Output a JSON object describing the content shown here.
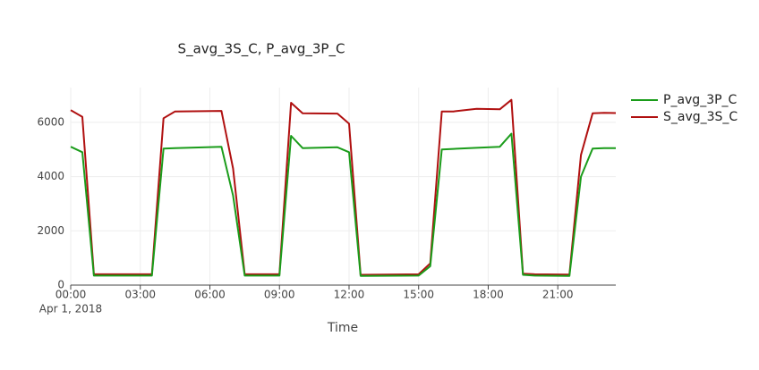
{
  "chart_data": {
    "type": "line",
    "title": "S_avg_3S_C, P_avg_3P_C",
    "x_label": "Time",
    "x": [
      "2018-04-01T00:00",
      "2018-04-01T00:30",
      "2018-04-01T01:00",
      "2018-04-01T03:30",
      "2018-04-01T04:00",
      "2018-04-01T04:30",
      "2018-04-01T06:30",
      "2018-04-01T07:00",
      "2018-04-01T07:30",
      "2018-04-01T09:00",
      "2018-04-01T09:30",
      "2018-04-01T10:00",
      "2018-04-01T11:30",
      "2018-04-01T12:00",
      "2018-04-01T12:30",
      "2018-04-01T15:00",
      "2018-04-01T15:30",
      "2018-04-01T16:00",
      "2018-04-01T16:30",
      "2018-04-01T17:30",
      "2018-04-01T18:30",
      "2018-04-01T19:00",
      "2018-04-01T19:30",
      "2018-04-01T20:00",
      "2018-04-01T21:30",
      "2018-04-01T22:00",
      "2018-04-01T22:30",
      "2018-04-01T23:00",
      "2018-04-01T23:30"
    ],
    "series": [
      {
        "name": "P_avg_3P_C",
        "color": "#1a9c1a",
        "values": [
          5100,
          4900,
          350,
          350,
          5030,
          5050,
          5100,
          3300,
          350,
          350,
          5500,
          5050,
          5080,
          4900,
          340,
          350,
          700,
          5000,
          5020,
          5060,
          5100,
          5580,
          380,
          350,
          340,
          4000,
          5030,
          5050,
          5050
        ]
      },
      {
        "name": "S_avg_3S_C",
        "color": "#b01010",
        "values": [
          6450,
          6200,
          400,
          400,
          6150,
          6400,
          6420,
          4300,
          400,
          400,
          6720,
          6330,
          6320,
          5950,
          380,
          400,
          800,
          6400,
          6400,
          6500,
          6480,
          6830,
          420,
          400,
          390,
          4800,
          6330,
          6350,
          6340
        ]
      }
    ],
    "xlim": [
      "2018-04-01T00:00",
      "2018-04-01T23:30"
    ],
    "xticks": [
      {
        "value": "2018-04-01T00:00",
        "label": "00:00"
      },
      {
        "value": "2018-04-01T03:00",
        "label": "03:00"
      },
      {
        "value": "2018-04-01T06:00",
        "label": "06:00"
      },
      {
        "value": "2018-04-01T09:00",
        "label": "09:00"
      },
      {
        "value": "2018-04-01T12:00",
        "label": "12:00"
      },
      {
        "value": "2018-04-01T15:00",
        "label": "15:00"
      },
      {
        "value": "2018-04-01T18:00",
        "label": "18:00"
      },
      {
        "value": "2018-04-01T21:00",
        "label": "21:00"
      }
    ],
    "xtick_date": "Apr 1, 2018",
    "ylim": [
      0,
      7280
    ],
    "yticks": [
      0,
      2000,
      4000,
      6000
    ],
    "grid": true,
    "legend": "right"
  }
}
